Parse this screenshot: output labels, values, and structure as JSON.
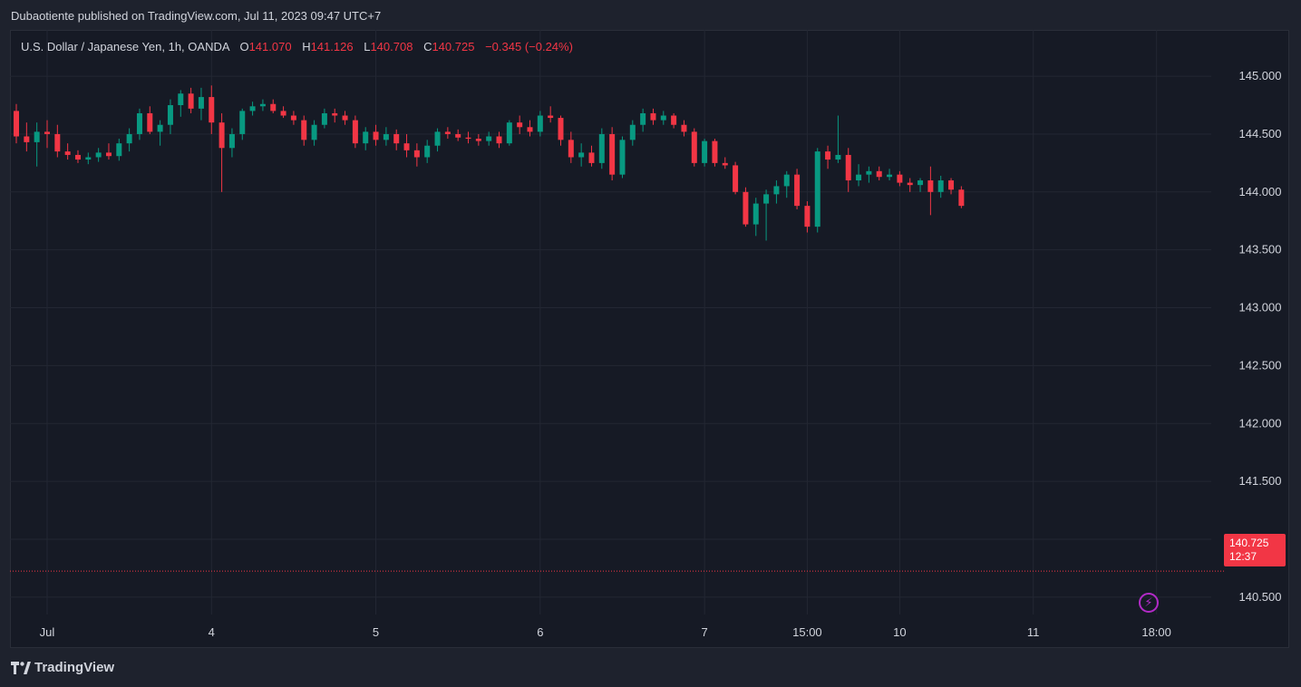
{
  "header": {
    "publisher_text": "Dubaotiente published on TradingView.com, Jul 11, 2023 09:47 UTC+7"
  },
  "legend": {
    "symbol": "U.S. Dollar / Japanese Yen, 1h, OANDA",
    "o_label": "O",
    "o_value": "141.070",
    "h_label": "H",
    "h_value": "141.126",
    "l_label": "L",
    "l_value": "140.708",
    "c_label": "C",
    "c_value": "140.725",
    "change": "−0.345 (−0.24%)"
  },
  "price_tag": {
    "price": "140.725",
    "countdown": "12:37"
  },
  "footer": {
    "brand": "TradingView"
  },
  "colors": {
    "up": "#089981",
    "down": "#f23645",
    "background": "#161a25",
    "grid": "#2a2e39"
  },
  "icons": {
    "replay": "lightning-bolt-icon"
  },
  "chart_data": {
    "type": "candlestick",
    "symbol": "USDJPY",
    "interval": "1h",
    "ylim": [
      140.35,
      145.4
    ],
    "grid": true,
    "y_ticks": [
      "145.000",
      "144.500",
      "144.000",
      "143.500",
      "143.000",
      "142.500",
      "142.000",
      "141.500",
      "141.000",
      "140.500"
    ],
    "x_ticks": [
      {
        "label": "Jul",
        "index": 3
      },
      {
        "label": "4",
        "index": 19
      },
      {
        "label": "5",
        "index": 35
      },
      {
        "label": "6",
        "index": 51
      },
      {
        "label": "7",
        "index": 67
      },
      {
        "label": "15:00",
        "index": 77
      },
      {
        "label": "10",
        "index": 86
      },
      {
        "label": "11",
        "index": 99
      },
      {
        "label": "18:00",
        "index": 111
      }
    ],
    "last_price": 140.725,
    "candles": [
      [
        144.7,
        144.76,
        144.42,
        144.48
      ],
      [
        144.48,
        144.6,
        144.35,
        144.43
      ],
      [
        144.43,
        144.6,
        144.22,
        144.52
      ],
      [
        144.52,
        144.62,
        144.38,
        144.5
      ],
      [
        144.5,
        144.58,
        144.3,
        144.35
      ],
      [
        144.35,
        144.42,
        144.28,
        144.32
      ],
      [
        144.32,
        144.36,
        144.25,
        144.28
      ],
      [
        144.28,
        144.34,
        144.24,
        144.3
      ],
      [
        144.3,
        144.38,
        144.26,
        144.34
      ],
      [
        144.34,
        144.42,
        144.28,
        144.31
      ],
      [
        144.31,
        144.46,
        144.27,
        144.42
      ],
      [
        144.42,
        144.55,
        144.35,
        144.5
      ],
      [
        144.5,
        144.72,
        144.45,
        144.68
      ],
      [
        144.68,
        144.74,
        144.5,
        144.52
      ],
      [
        144.52,
        144.62,
        144.4,
        144.58
      ],
      [
        144.58,
        144.8,
        144.5,
        144.75
      ],
      [
        144.75,
        144.88,
        144.65,
        144.85
      ],
      [
        144.85,
        144.9,
        144.68,
        144.72
      ],
      [
        144.72,
        144.9,
        144.62,
        144.82
      ],
      [
        144.82,
        144.92,
        144.5,
        144.6
      ],
      [
        144.6,
        144.68,
        144.0,
        144.38
      ],
      [
        144.38,
        144.55,
        144.3,
        144.5
      ],
      [
        144.5,
        144.72,
        144.45,
        144.7
      ],
      [
        144.7,
        144.78,
        144.66,
        144.74
      ],
      [
        144.74,
        144.8,
        144.7,
        144.76
      ],
      [
        144.76,
        144.8,
        144.68,
        144.7
      ],
      [
        144.7,
        144.74,
        144.64,
        144.66
      ],
      [
        144.66,
        144.7,
        144.58,
        144.62
      ],
      [
        144.62,
        144.66,
        144.4,
        144.45
      ],
      [
        144.45,
        144.62,
        144.4,
        144.58
      ],
      [
        144.58,
        144.72,
        144.55,
        144.68
      ],
      [
        144.68,
        144.72,
        144.6,
        144.66
      ],
      [
        144.66,
        144.7,
        144.58,
        144.62
      ],
      [
        144.62,
        144.66,
        144.38,
        144.42
      ],
      [
        144.42,
        144.56,
        144.36,
        144.52
      ],
      [
        144.52,
        144.58,
        144.4,
        144.45
      ],
      [
        144.45,
        144.56,
        144.4,
        144.5
      ],
      [
        144.5,
        144.54,
        144.36,
        144.42
      ],
      [
        144.42,
        144.5,
        144.3,
        144.36
      ],
      [
        144.36,
        144.42,
        144.22,
        144.3
      ],
      [
        144.3,
        144.45,
        144.25,
        144.4
      ],
      [
        144.4,
        144.55,
        144.35,
        144.52
      ],
      [
        144.52,
        144.56,
        144.46,
        144.5
      ],
      [
        144.5,
        144.54,
        144.44,
        144.47
      ],
      [
        144.47,
        144.52,
        144.42,
        144.46
      ],
      [
        144.46,
        144.5,
        144.4,
        144.44
      ],
      [
        144.44,
        144.52,
        144.4,
        144.48
      ],
      [
        144.48,
        144.52,
        144.38,
        144.42
      ],
      [
        144.42,
        144.62,
        144.4,
        144.6
      ],
      [
        144.6,
        144.66,
        144.5,
        144.56
      ],
      [
        144.56,
        144.62,
        144.48,
        144.52
      ],
      [
        144.52,
        144.7,
        144.48,
        144.66
      ],
      [
        144.66,
        144.74,
        144.6,
        144.64
      ],
      [
        144.64,
        144.66,
        144.4,
        144.45
      ],
      [
        144.45,
        144.52,
        144.25,
        144.3
      ],
      [
        144.3,
        144.42,
        144.22,
        144.34
      ],
      [
        144.34,
        144.4,
        144.22,
        144.25
      ],
      [
        144.25,
        144.55,
        144.2,
        144.5
      ],
      [
        144.5,
        144.56,
        144.1,
        144.15
      ],
      [
        144.15,
        144.48,
        144.12,
        144.45
      ],
      [
        144.45,
        144.62,
        144.4,
        144.58
      ],
      [
        144.58,
        144.72,
        144.52,
        144.68
      ],
      [
        144.68,
        144.72,
        144.58,
        144.62
      ],
      [
        144.62,
        144.7,
        144.58,
        144.66
      ],
      [
        144.66,
        144.68,
        144.55,
        144.58
      ],
      [
        144.58,
        144.62,
        144.48,
        144.52
      ],
      [
        144.52,
        144.55,
        144.22,
        144.25
      ],
      [
        144.25,
        144.46,
        144.22,
        144.44
      ],
      [
        144.44,
        144.46,
        144.22,
        144.25
      ],
      [
        144.25,
        144.3,
        144.2,
        144.23
      ],
      [
        144.23,
        144.26,
        143.98,
        144.0
      ],
      [
        144.0,
        144.04,
        143.7,
        143.72
      ],
      [
        143.72,
        143.95,
        143.62,
        143.9
      ],
      [
        143.9,
        144.02,
        143.58,
        143.98
      ],
      [
        143.98,
        144.1,
        143.9,
        144.05
      ],
      [
        144.05,
        144.18,
        143.95,
        144.15
      ],
      [
        144.15,
        144.2,
        143.85,
        143.88
      ],
      [
        143.88,
        143.92,
        143.65,
        143.7
      ],
      [
        143.7,
        144.38,
        143.65,
        144.35
      ],
      [
        144.35,
        144.4,
        144.2,
        144.28
      ],
      [
        144.28,
        144.66,
        144.25,
        144.32
      ],
      [
        144.32,
        144.38,
        144.0,
        144.1
      ],
      [
        144.1,
        144.24,
        144.05,
        144.15
      ],
      [
        144.15,
        144.22,
        144.08,
        144.18
      ],
      [
        144.18,
        144.22,
        144.1,
        144.13
      ],
      [
        144.13,
        144.2,
        144.1,
        144.15
      ],
      [
        144.15,
        144.18,
        144.05,
        144.08
      ],
      [
        144.08,
        144.12,
        144.0,
        144.06
      ],
      [
        144.06,
        144.12,
        144.0,
        144.1
      ],
      [
        144.1,
        144.22,
        143.8,
        144.0
      ],
      [
        144.0,
        144.14,
        143.95,
        144.1
      ],
      [
        144.1,
        144.12,
        143.98,
        144.02
      ],
      [
        144.02,
        144.05,
        143.86,
        143.88
      ]
    ]
  }
}
